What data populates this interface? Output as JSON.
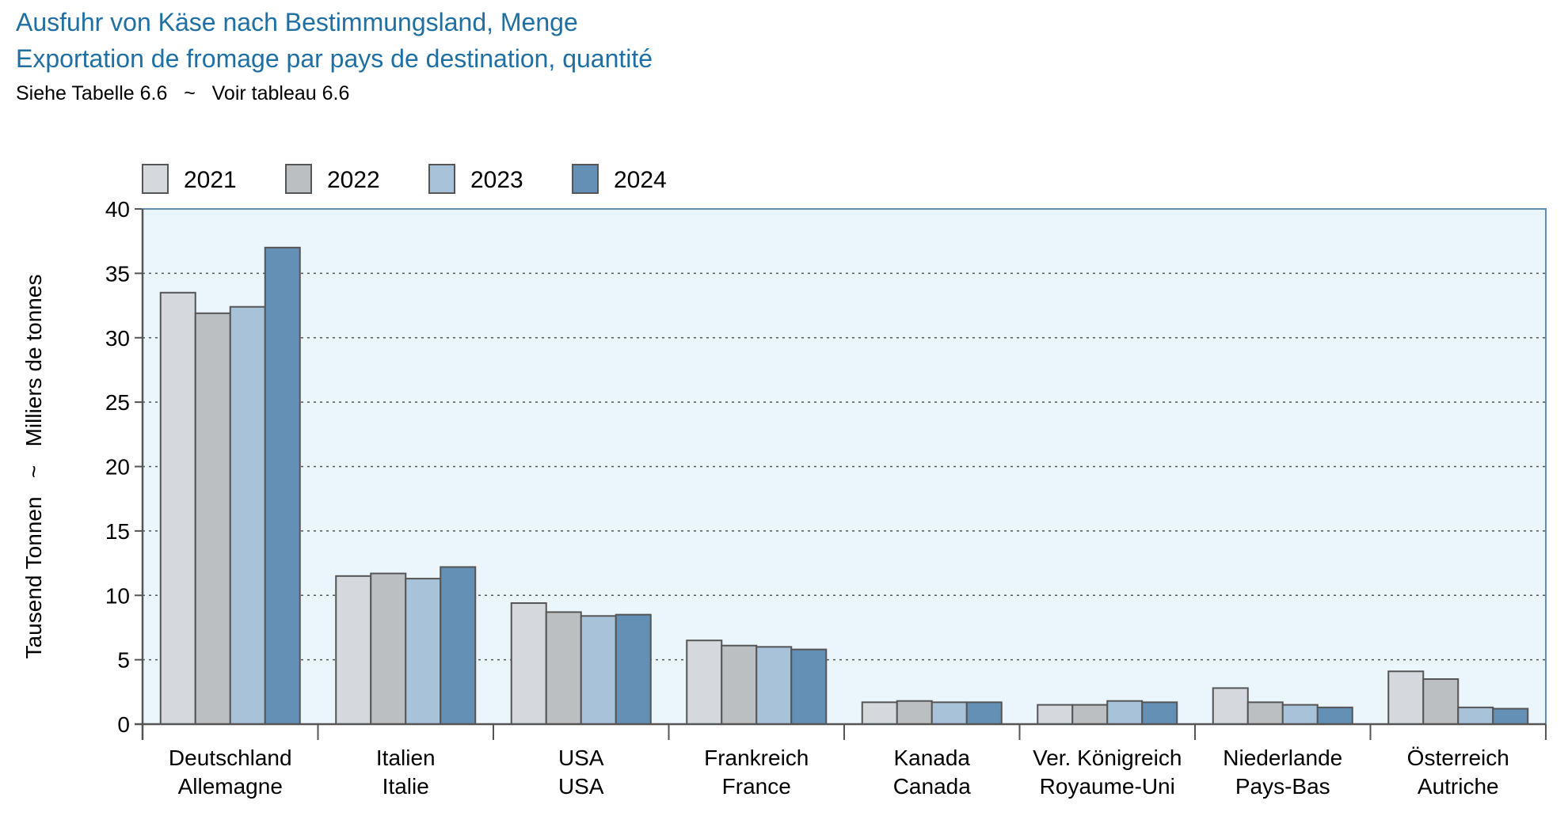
{
  "header": {
    "title_de": "Ausfuhr von Käse nach Bestimmungsland, Menge",
    "title_fr": "Exportation de fromage par pays de destination, quantité",
    "reference": "Siehe Tabelle 6.6   ~   Voir tableau 6.6"
  },
  "colors": {
    "title": "#1f6fa3",
    "plot_background": "#eaf5fc",
    "plot_border": "#5f8fb5",
    "series": [
      "#d5d9dd",
      "#bcbfc2",
      "#a8c3d9",
      "#6490b6"
    ],
    "bar_stroke": "#555555"
  },
  "chart_data": {
    "type": "bar",
    "ylabel": "Tausend Tonnen   ~   Milliers de tonnes",
    "ylim": [
      0,
      40
    ],
    "yticks": [
      0,
      5,
      10,
      15,
      20,
      25,
      30,
      35,
      40
    ],
    "grid": "horizontal dotted",
    "legend_position": "top-left",
    "categories": [
      [
        "Deutschland",
        "Allemagne"
      ],
      [
        "Italien",
        "Italie"
      ],
      [
        "USA",
        "USA"
      ],
      [
        "Frankreich",
        "France"
      ],
      [
        "Kanada",
        "Canada"
      ],
      [
        "Ver. Königreich",
        "Royaume-Uni"
      ],
      [
        "Niederlande",
        "Pays-Bas"
      ],
      [
        "Österreich",
        "Autriche"
      ]
    ],
    "series": [
      {
        "name": "2021",
        "values": [
          33.5,
          11.5,
          9.4,
          6.5,
          1.7,
          1.5,
          2.8,
          4.1
        ]
      },
      {
        "name": "2022",
        "values": [
          31.9,
          11.7,
          8.7,
          6.1,
          1.8,
          1.5,
          1.7,
          3.5
        ]
      },
      {
        "name": "2023",
        "values": [
          32.4,
          11.3,
          8.4,
          6.0,
          1.7,
          1.8,
          1.5,
          1.3
        ]
      },
      {
        "name": "2024",
        "values": [
          37.0,
          12.2,
          8.5,
          5.8,
          1.7,
          1.7,
          1.3,
          1.2
        ]
      }
    ]
  }
}
